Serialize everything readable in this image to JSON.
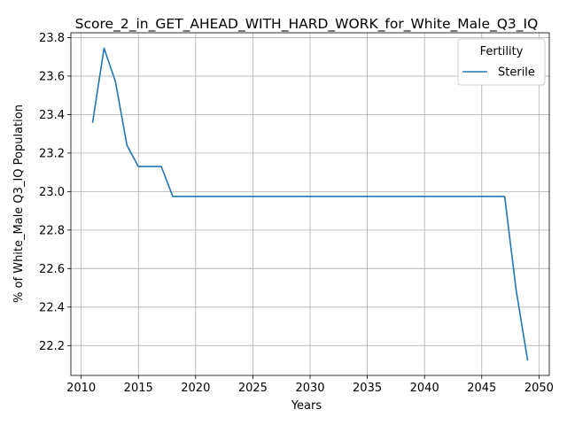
{
  "chart_data": {
    "type": "line",
    "title": "Score_2_in_GET_AHEAD_WITH_HARD_WORK_for_White_Male_Q3_IQ",
    "xlabel": "Years",
    "ylabel": "% of White_Male Q3_IQ Population",
    "xlim": [
      2009.1,
      2050.9
    ],
    "ylim": [
      22.045,
      23.825
    ],
    "xticks": [
      2010,
      2015,
      2020,
      2025,
      2030,
      2035,
      2040,
      2045,
      2050
    ],
    "yticks": [
      22.2,
      22.4,
      22.6,
      22.8,
      23.0,
      23.2,
      23.4,
      23.6,
      23.8
    ],
    "grid": true,
    "legend": {
      "title": "Fertility",
      "placement": "top-right"
    },
    "series": [
      {
        "name": "Sterile",
        "color": "#1f77b4",
        "x": [
          2011,
          2012,
          2013,
          2014,
          2015,
          2016,
          2017,
          2018,
          2019,
          2020,
          2021,
          2022,
          2023,
          2024,
          2025,
          2026,
          2027,
          2028,
          2029,
          2030,
          2031,
          2032,
          2033,
          2034,
          2035,
          2036,
          2037,
          2038,
          2039,
          2040,
          2041,
          2042,
          2043,
          2044,
          2045,
          2046,
          2047,
          2048,
          2049
        ],
        "y": [
          23.36,
          23.745,
          23.57,
          23.24,
          23.13,
          23.13,
          23.13,
          22.975,
          22.975,
          22.975,
          22.975,
          22.975,
          22.975,
          22.975,
          22.975,
          22.975,
          22.975,
          22.975,
          22.975,
          22.975,
          22.975,
          22.975,
          22.975,
          22.975,
          22.975,
          22.975,
          22.975,
          22.975,
          22.975,
          22.975,
          22.975,
          22.975,
          22.975,
          22.975,
          22.975,
          22.975,
          22.975,
          22.49,
          22.125
        ]
      }
    ]
  }
}
